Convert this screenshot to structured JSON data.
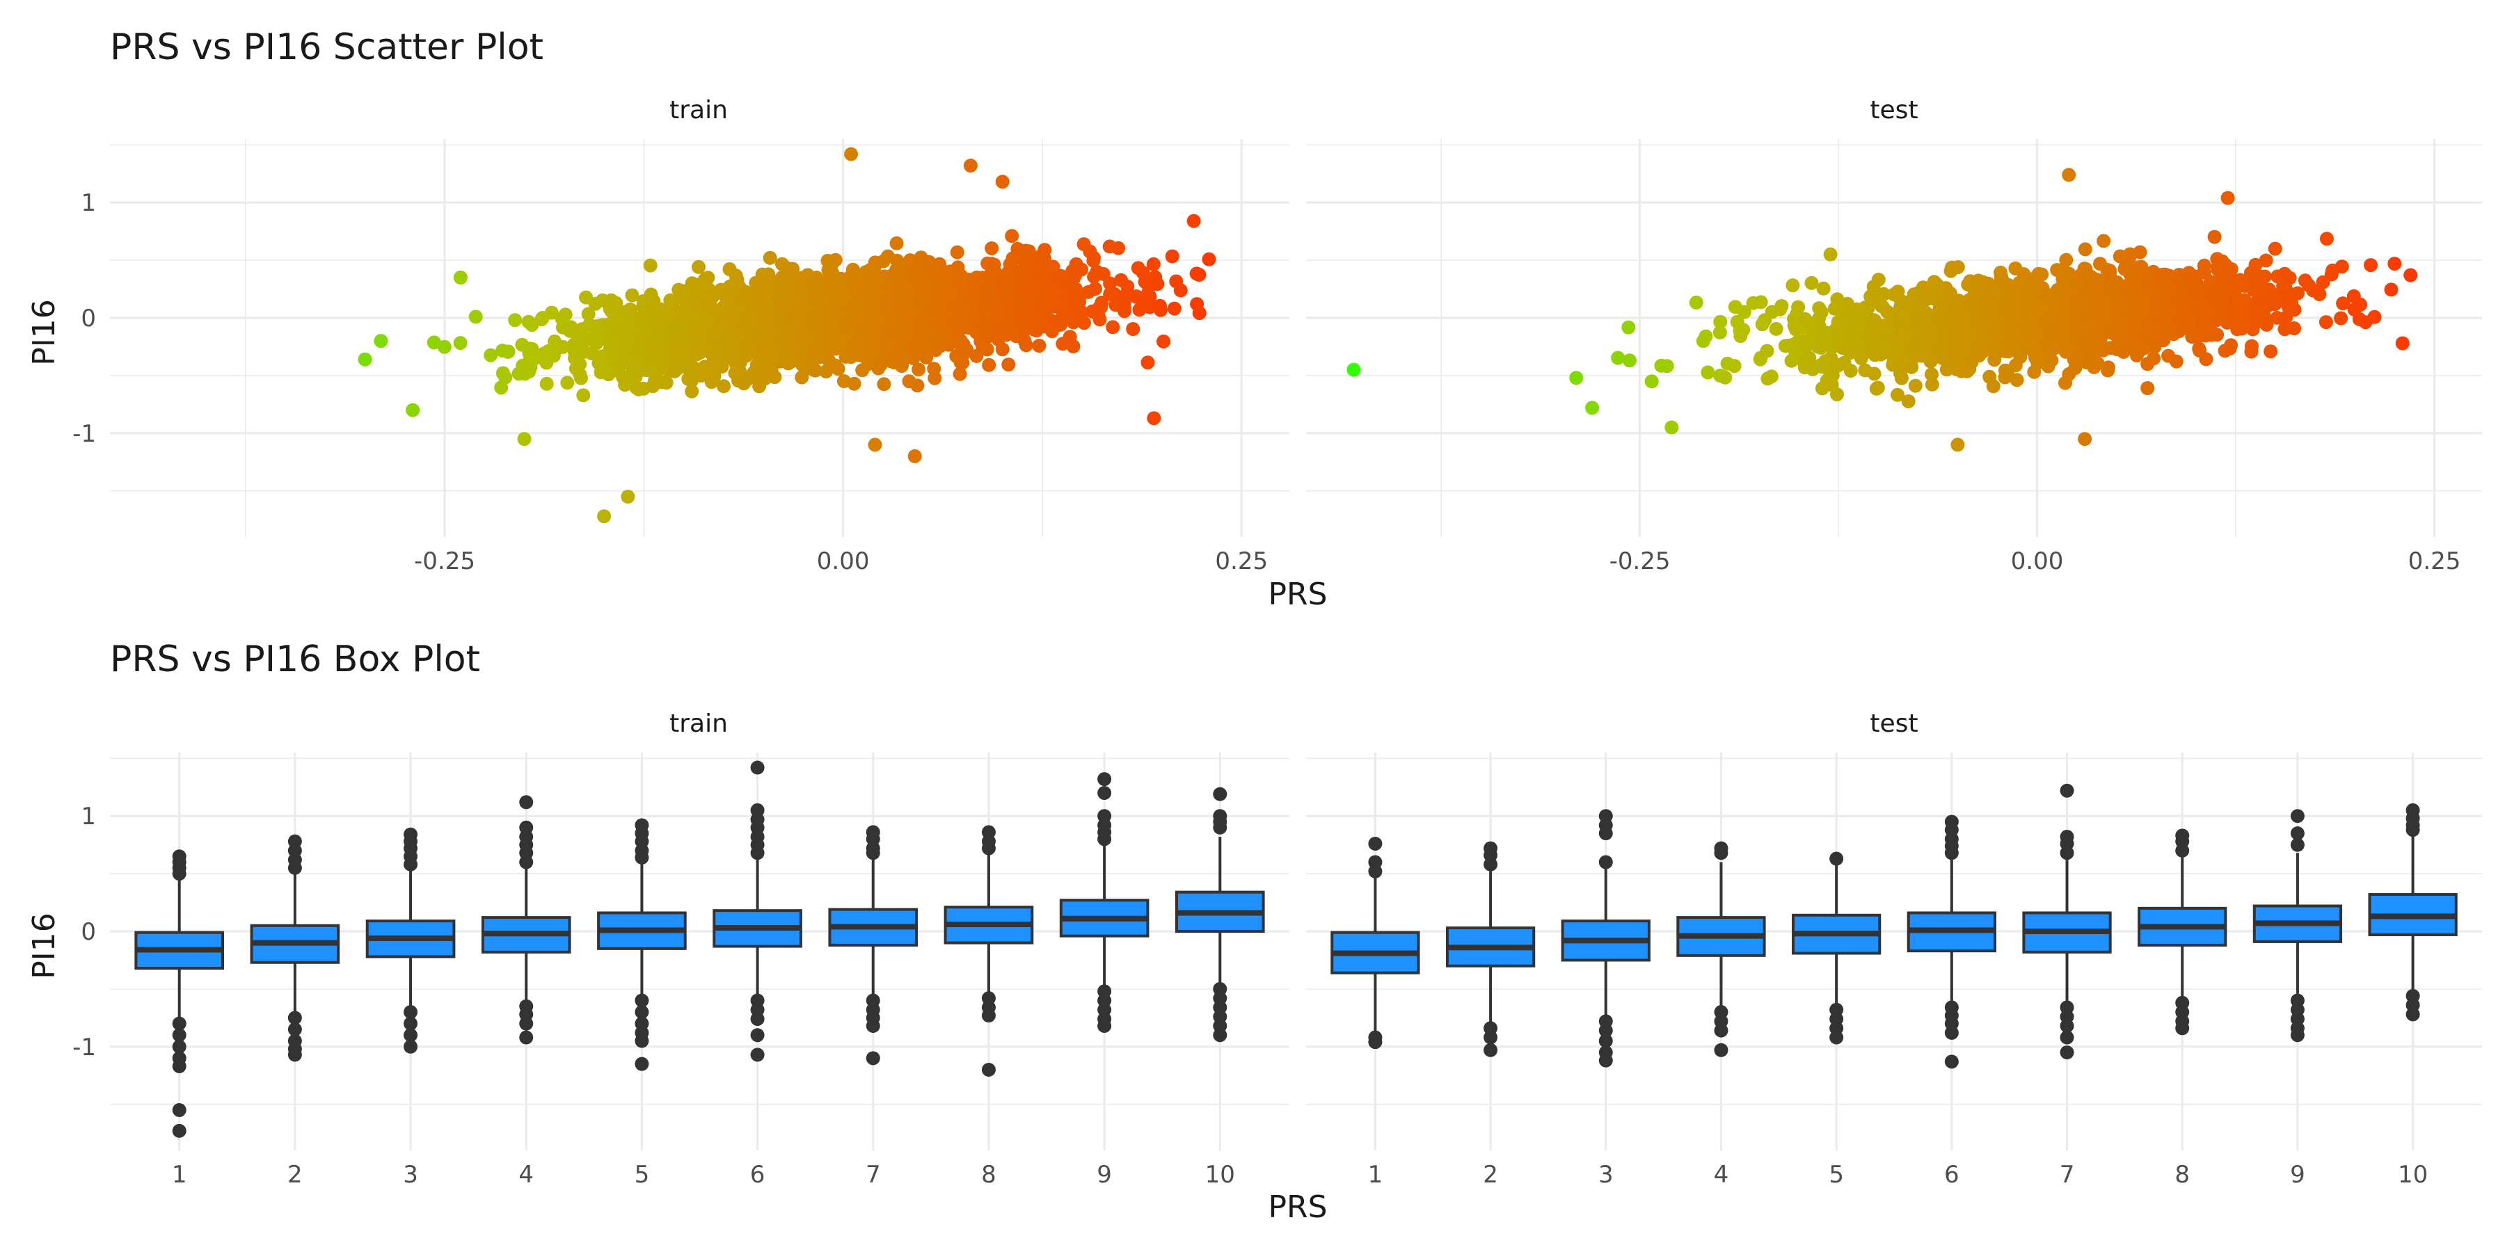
{
  "chart_data": [
    {
      "type": "scatter",
      "title": "PRS vs PI16 Scatter Plot",
      "xlabel": "PRS",
      "ylabel": "PI16",
      "xlim": [
        -0.46,
        0.28
      ],
      "ylim": [
        -1.9,
        1.55
      ],
      "x_ticks": [
        -0.25,
        0.0,
        0.25
      ],
      "x_tick_labels": [
        "-0.25",
        "0.00",
        "0.25"
      ],
      "y_ticks": [
        1,
        0,
        -1
      ],
      "y_tick_labels": [
        "1",
        "0",
        "-1"
      ],
      "color_gradient": {
        "low": "#33ff00",
        "mid": "#b3c200",
        "high": "#ff3300",
        "range": [
          -0.43,
          0.25
        ]
      },
      "grid": true,
      "legend": "none",
      "panels": [
        {
          "label": "train",
          "cloud": {
            "n": 2600,
            "x_mean": 0.0,
            "x_sd": 0.08,
            "slope": 1.2,
            "intercept": 0.0,
            "y_sd": 0.2
          },
          "outliers": [
            {
              "x": 0.005,
              "y": 1.42
            },
            {
              "x": 0.08,
              "y": 1.32
            },
            {
              "x": 0.1,
              "y": 1.18
            },
            {
              "x": -0.29,
              "y": -0.2
            },
            {
              "x": -0.3,
              "y": -0.36
            },
            {
              "x": -0.24,
              "y": 0.35
            },
            {
              "x": -0.27,
              "y": -0.8
            },
            {
              "x": -0.15,
              "y": -1.72
            },
            {
              "x": -0.135,
              "y": -1.55
            },
            {
              "x": 0.045,
              "y": -1.2
            },
            {
              "x": 0.195,
              "y": -0.87
            },
            {
              "x": 0.22,
              "y": 0.84
            },
            {
              "x": 0.02,
              "y": -1.1
            },
            {
              "x": -0.2,
              "y": -1.05
            }
          ]
        },
        {
          "label": "test",
          "cloud": {
            "n": 1700,
            "x_mean": 0.0,
            "x_sd": 0.075,
            "slope": 1.1,
            "intercept": 0.0,
            "y_sd": 0.19
          },
          "outliers": [
            {
              "x": -0.43,
              "y": -0.45
            },
            {
              "x": -0.29,
              "y": -0.52
            },
            {
              "x": -0.28,
              "y": -0.78
            },
            {
              "x": 0.02,
              "y": 1.24
            },
            {
              "x": 0.12,
              "y": 1.04
            },
            {
              "x": 0.235,
              "y": 0.37
            },
            {
              "x": 0.23,
              "y": -0.22
            },
            {
              "x": -0.05,
              "y": -1.1
            },
            {
              "x": 0.03,
              "y": -1.05
            },
            {
              "x": -0.23,
              "y": -0.95
            },
            {
              "x": -0.13,
              "y": 0.55
            }
          ]
        }
      ]
    },
    {
      "type": "box",
      "title": "PRS vs PI16 Box Plot",
      "xlabel": "PRS",
      "ylabel": "PI16",
      "categories": [
        "1",
        "2",
        "3",
        "4",
        "5",
        "6",
        "7",
        "8",
        "9",
        "10"
      ],
      "ylim": [
        -1.9,
        1.55
      ],
      "y_ticks": [
        1,
        0,
        -1
      ],
      "y_tick_labels": [
        "1",
        "0",
        "-1"
      ],
      "box_color": "#1e90ff",
      "grid": true,
      "legend": "none",
      "panels": [
        {
          "label": "train",
          "boxes": [
            {
              "q1": -0.32,
              "median": -0.16,
              "q3": -0.01,
              "low": -0.77,
              "high": 0.46,
              "outliers": [
                0.65,
                0.6,
                0.55,
                0.5,
                -0.8,
                -0.9,
                -1.0,
                -1.1,
                -1.17,
                -1.55,
                -1.73
              ]
            },
            {
              "q1": -0.27,
              "median": -0.1,
              "q3": 0.05,
              "low": -0.72,
              "high": 0.52,
              "outliers": [
                0.78,
                0.7,
                0.62,
                0.55,
                -0.75,
                -0.85,
                -0.95,
                -1.02,
                -1.07
              ]
            },
            {
              "q1": -0.22,
              "median": -0.06,
              "q3": 0.09,
              "low": -0.67,
              "high": 0.55,
              "outliers": [
                0.84,
                0.78,
                0.72,
                0.65,
                0.58,
                -0.7,
                -0.8,
                -0.9,
                -1.0
              ]
            },
            {
              "q1": -0.18,
              "median": -0.02,
              "q3": 0.12,
              "low": -0.62,
              "high": 0.58,
              "outliers": [
                1.12,
                0.9,
                0.82,
                0.75,
                0.68,
                0.6,
                -0.65,
                -0.72,
                -0.8,
                -0.92
              ]
            },
            {
              "q1": -0.15,
              "median": 0.01,
              "q3": 0.16,
              "low": -0.58,
              "high": 0.62,
              "outliers": [
                0.92,
                0.85,
                0.78,
                0.7,
                0.64,
                -0.6,
                -0.7,
                -0.8,
                -0.88,
                -0.95,
                -1.15
              ]
            },
            {
              "q1": -0.13,
              "median": 0.03,
              "q3": 0.18,
              "low": -0.58,
              "high": 0.65,
              "outliers": [
                1.42,
                1.05,
                0.97,
                0.9,
                0.82,
                0.75,
                0.68,
                -0.6,
                -0.68,
                -0.76,
                -0.9,
                -1.07
              ]
            },
            {
              "q1": -0.12,
              "median": 0.04,
              "q3": 0.19,
              "low": -0.56,
              "high": 0.65,
              "outliers": [
                0.86,
                0.8,
                0.72,
                0.68,
                -0.6,
                -0.68,
                -0.75,
                -0.82,
                -1.1
              ]
            },
            {
              "q1": -0.1,
              "median": 0.06,
              "q3": 0.21,
              "low": -0.55,
              "high": 0.68,
              "outliers": [
                0.86,
                0.78,
                0.72,
                -0.58,
                -0.66,
                -0.73,
                -1.2
              ]
            },
            {
              "q1": -0.04,
              "median": 0.11,
              "q3": 0.27,
              "low": -0.5,
              "high": 0.74,
              "outliers": [
                1.32,
                1.2,
                1.0,
                0.92,
                0.86,
                0.8,
                -0.52,
                -0.6,
                -0.68,
                -0.76,
                -0.82
              ]
            },
            {
              "q1": 0.0,
              "median": 0.16,
              "q3": 0.34,
              "low": -0.48,
              "high": 0.82,
              "outliers": [
                1.19,
                1.0,
                0.95,
                0.9,
                -0.5,
                -0.58,
                -0.66,
                -0.74,
                -0.82,
                -0.9
              ]
            }
          ]
        },
        {
          "label": "test",
          "boxes": [
            {
              "q1": -0.36,
              "median": -0.19,
              "q3": -0.01,
              "low": -0.88,
              "high": 0.5,
              "outliers": [
                0.76,
                0.6,
                0.52,
                -0.92,
                -0.96
              ]
            },
            {
              "q1": -0.3,
              "median": -0.14,
              "q3": 0.03,
              "low": -0.8,
              "high": 0.52,
              "outliers": [
                0.72,
                0.66,
                0.58,
                -0.84,
                -0.92,
                -1.03
              ]
            },
            {
              "q1": -0.25,
              "median": -0.08,
              "q3": 0.09,
              "low": -0.74,
              "high": 0.58,
              "outliers": [
                1.0,
                0.92,
                0.85,
                0.6,
                -0.78,
                -0.86,
                -0.95,
                -1.05,
                -1.12
              ]
            },
            {
              "q1": -0.21,
              "median": -0.04,
              "q3": 0.12,
              "low": -0.66,
              "high": 0.6,
              "outliers": [
                0.72,
                0.68,
                -0.7,
                -0.78,
                -0.86,
                -1.03
              ]
            },
            {
              "q1": -0.19,
              "median": -0.02,
              "q3": 0.14,
              "low": -0.64,
              "high": 0.58,
              "outliers": [
                0.63,
                -0.68,
                -0.76,
                -0.84,
                -0.92
              ]
            },
            {
              "q1": -0.17,
              "median": 0.01,
              "q3": 0.16,
              "low": -0.63,
              "high": 0.63,
              "outliers": [
                0.95,
                0.88,
                0.8,
                0.74,
                0.68,
                -0.66,
                -0.73,
                -0.8,
                -0.88,
                -1.13
              ]
            },
            {
              "q1": -0.18,
              "median": 0.0,
              "q3": 0.16,
              "low": -0.62,
              "high": 0.62,
              "outliers": [
                1.22,
                0.82,
                0.76,
                0.68,
                -0.66,
                -0.74,
                -0.82,
                -0.92,
                -1.05
              ]
            },
            {
              "q1": -0.12,
              "median": 0.04,
              "q3": 0.2,
              "low": -0.58,
              "high": 0.65,
              "outliers": [
                0.83,
                0.78,
                0.7,
                -0.62,
                -0.7,
                -0.78,
                -0.84
              ]
            },
            {
              "q1": -0.09,
              "median": 0.07,
              "q3": 0.22,
              "low": -0.54,
              "high": 0.68,
              "outliers": [
                1.0,
                0.85,
                0.75,
                -0.6,
                -0.68,
                -0.76,
                -0.84,
                -0.9
              ]
            },
            {
              "q1": -0.03,
              "median": 0.13,
              "q3": 0.32,
              "low": -0.52,
              "high": 0.82,
              "outliers": [
                1.05,
                0.98,
                0.92,
                0.88,
                -0.56,
                -0.64,
                -0.72
              ]
            }
          ]
        }
      ]
    }
  ]
}
